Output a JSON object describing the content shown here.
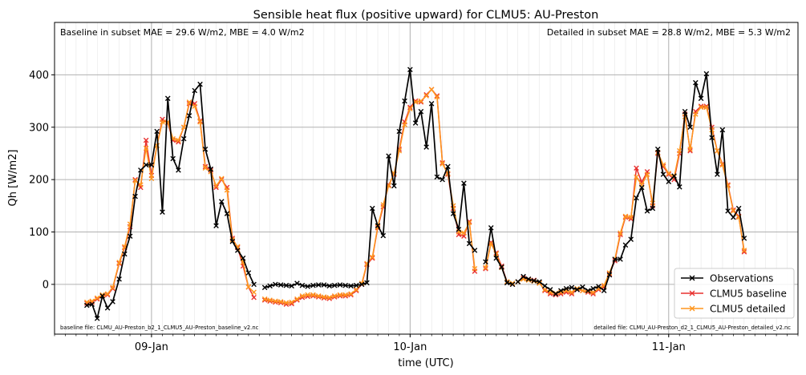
{
  "chart_data": {
    "type": "line",
    "title": "Sensible heat flux (positive upward) for CLMU5: AU-Preston",
    "xlabel": "time (UTC)",
    "ylabel": "Qh [W/m2]",
    "xlim": [
      -0.375,
      2.5
    ],
    "ylim": [
      -95,
      500
    ],
    "xticks": [
      {
        "v": 0,
        "label": "09-Jan"
      },
      {
        "v": 1,
        "label": "10-Jan"
      },
      {
        "v": 2,
        "label": "11-Jan"
      }
    ],
    "yticks": [
      0,
      100,
      200,
      300,
      400
    ],
    "grid": true,
    "legend_position": "lower right",
    "annotations": {
      "baseline_metrics": "Baseline in subset MAE = 29.6 W/m2, MBE = 4.0 W/m2",
      "detailed_metrics": "Detailed in subset MAE = 28.8 W/m2, MBE = 5.3 W/m2",
      "baseline_file": "baseline file: CLMU_AU-Preston_b2_1_CLMU5_AU-Preston_baseline_v2.nc",
      "detailed_file": "detailed file: CLMU_AU-Preston_d2_1_CLMU5_AU-Preston_detailed_v2.nc"
    },
    "series": [
      {
        "name": "Observations",
        "color": "#000000",
        "x_days_from_09Jan": [
          -0.25,
          -0.23,
          -0.21,
          -0.19,
          -0.17,
          -0.15,
          -0.125,
          -0.104,
          -0.083,
          -0.063,
          -0.042,
          -0.021,
          0,
          0.021,
          0.042,
          0.063,
          0.083,
          0.104,
          0.125,
          0.146,
          0.167,
          0.188,
          0.208,
          0.229,
          0.25,
          0.271,
          0.292,
          0.313,
          0.333,
          0.354,
          0.375,
          0.396,
          null,
          0.438,
          0.458,
          0.479,
          0.5,
          0.521,
          0.542,
          0.563,
          0.583,
          0.604,
          0.625,
          0.646,
          0.667,
          0.688,
          0.708,
          0.729,
          0.75,
          0.771,
          0.792,
          0.813,
          0.833,
          0.854,
          0.875,
          0.896,
          0.917,
          0.938,
          0.958,
          0.979,
          1.0,
          1.021,
          1.042,
          1.063,
          1.083,
          1.104,
          1.125,
          1.146,
          1.167,
          1.188,
          1.208,
          1.229,
          1.25,
          1.271,
          1.292,
          1.313,
          1.333,
          1.354,
          1.375,
          1.396,
          null,
          1.417,
          1.438,
          1.458,
          1.479,
          1.5,
          1.521,
          1.542,
          1.563,
          1.583,
          1.604,
          1.625,
          1.646,
          1.667,
          1.688,
          1.708,
          1.729,
          1.75,
          1.771,
          1.792,
          1.813,
          1.833,
          1.854,
          1.875,
          1.896,
          1.917,
          1.938,
          1.958,
          1.979,
          2.0,
          2.021,
          2.042,
          2.063,
          2.083,
          2.104,
          2.125,
          2.146,
          2.167,
          2.188,
          2.208,
          2.229,
          2.25,
          2.271,
          2.292,
          2.313,
          2.333,
          2.354,
          2.375
        ],
        "values": [
          -40,
          -38,
          -65,
          -22,
          -45,
          -33,
          10,
          58,
          92,
          168,
          218,
          228,
          228,
          292,
          138,
          355,
          240,
          218,
          278,
          322,
          370,
          382,
          258,
          220,
          112,
          158,
          135,
          82,
          65,
          50,
          22,
          0,
          null,
          -6,
          -3,
          0,
          -1,
          -2,
          -3,
          2,
          -2,
          -4,
          -2,
          -1,
          -1,
          -3,
          -2,
          -1,
          -2,
          -3,
          -2,
          0,
          3,
          145,
          112,
          93,
          245,
          188,
          292,
          350,
          410,
          308,
          330,
          262,
          345,
          205,
          200,
          225,
          135,
          105,
          193,
          78,
          65,
          null,
          43,
          108,
          50,
          33,
          3,
          0,
          2,
          5,
          15,
          10,
          7,
          5,
          -3,
          -10,
          -18,
          -12,
          -8,
          -6,
          -10,
          -5,
          -12,
          -8,
          -4,
          -12,
          18,
          48,
          48,
          75,
          86,
          165,
          185,
          140,
          145,
          258,
          210,
          196,
          207,
          186,
          330,
          300,
          385,
          355,
          402,
          280,
          210,
          295,
          140,
          128,
          145,
          88
        ]
      },
      {
        "name": "CLMU5 baseline",
        "color": "#e8312f",
        "x_days_from_09Jan": [
          -0.25,
          -0.23,
          -0.21,
          -0.19,
          -0.17,
          -0.15,
          -0.125,
          -0.104,
          -0.083,
          -0.063,
          -0.042,
          -0.021,
          0,
          0.021,
          0.042,
          0.063,
          0.083,
          0.104,
          0.125,
          0.146,
          0.167,
          0.188,
          0.208,
          0.229,
          0.25,
          0.271,
          0.292,
          0.313,
          0.333,
          0.354,
          0.375,
          0.396,
          null,
          0.438,
          0.458,
          0.479,
          0.5,
          0.521,
          0.542,
          0.563,
          0.583,
          0.604,
          0.625,
          0.646,
          0.667,
          0.688,
          0.708,
          0.729,
          0.75,
          0.771,
          0.792,
          0.813,
          0.833,
          0.854,
          0.875,
          0.896,
          0.917,
          0.938,
          0.958,
          0.979,
          1.0,
          1.021,
          1.042,
          1.063,
          1.083,
          1.104,
          1.125,
          1.146,
          1.167,
          1.188,
          1.208,
          1.229,
          1.25,
          1.271,
          1.292,
          1.313,
          1.333,
          1.354,
          1.375,
          1.396,
          null,
          1.417,
          1.438,
          1.458,
          1.479,
          1.5,
          1.521,
          1.542,
          1.563,
          1.583,
          1.604,
          1.625,
          1.646,
          1.667,
          1.688,
          1.708,
          1.729,
          1.75,
          1.771,
          1.792,
          1.813,
          1.833,
          1.854,
          1.875,
          1.896,
          1.917,
          1.938,
          1.958,
          1.979,
          2.0,
          2.021,
          2.042,
          2.063,
          2.083,
          2.104,
          2.125,
          2.146,
          2.167,
          2.188,
          2.208,
          2.229,
          2.25,
          2.271,
          2.292,
          2.313,
          2.333,
          2.354,
          2.375
        ],
        "values": [
          -36,
          -34,
          -28,
          -22,
          -20,
          -8,
          40,
          70,
          110,
          200,
          185,
          275,
          208,
          265,
          315,
          308,
          275,
          272,
          300,
          345,
          345,
          312,
          225,
          218,
          185,
          200,
          185,
          88,
          70,
          35,
          -5,
          -25,
          null,
          -30,
          -32,
          -34,
          -35,
          -38,
          -37,
          -30,
          -25,
          -23,
          -22,
          -24,
          -26,
          -27,
          -24,
          -22,
          -22,
          -20,
          -12,
          0,
          38,
          50,
          108,
          148,
          190,
          210,
          258,
          310,
          338,
          350,
          348,
          362,
          372,
          360,
          232,
          210,
          145,
          95,
          92,
          120,
          25,
          null,
          30,
          80,
          60,
          35,
          5,
          0,
          3,
          5,
          12,
          10,
          8,
          3,
          -12,
          -18,
          -20,
          -18,
          -15,
          -18,
          -10,
          -12,
          -15,
          -18,
          -10,
          -5,
          20,
          45,
          95,
          128,
          125,
          222,
          195,
          215,
          150,
          250,
          225,
          210,
          200,
          250,
          325,
          255,
          330,
          340,
          340,
          300,
          255,
          230,
          190,
          142,
          130,
          62
        ]
      },
      {
        "name": "CLMU5 detailed",
        "color": "#ff961e",
        "x_days_from_09Jan": [
          -0.25,
          -0.23,
          -0.21,
          -0.19,
          -0.17,
          -0.15,
          -0.125,
          -0.104,
          -0.083,
          -0.063,
          -0.042,
          -0.021,
          0,
          0.021,
          0.042,
          0.063,
          0.083,
          0.104,
          0.125,
          0.146,
          0.167,
          0.188,
          0.208,
          0.229,
          0.25,
          0.271,
          0.292,
          0.313,
          0.333,
          0.354,
          0.375,
          0.396,
          null,
          0.438,
          0.458,
          0.479,
          0.5,
          0.521,
          0.542,
          0.563,
          0.583,
          0.604,
          0.625,
          0.646,
          0.667,
          0.688,
          0.708,
          0.729,
          0.75,
          0.771,
          0.792,
          0.813,
          0.833,
          0.854,
          0.875,
          0.896,
          0.917,
          0.938,
          0.958,
          0.979,
          1.0,
          1.021,
          1.042,
          1.063,
          1.083,
          1.104,
          1.125,
          1.146,
          1.167,
          1.188,
          1.208,
          1.229,
          1.25,
          1.271,
          1.292,
          1.313,
          1.333,
          1.354,
          1.375,
          1.396,
          null,
          1.417,
          1.438,
          1.458,
          1.479,
          1.5,
          1.521,
          1.542,
          1.563,
          1.583,
          1.604,
          1.625,
          1.646,
          1.667,
          1.688,
          1.708,
          1.729,
          1.75,
          1.771,
          1.792,
          1.813,
          1.833,
          1.854,
          1.875,
          1.896,
          1.917,
          1.938,
          1.958,
          1.979,
          2.0,
          2.021,
          2.042,
          2.063,
          2.083,
          2.104,
          2.125,
          2.146,
          2.167,
          2.188,
          2.208,
          2.229,
          2.25,
          2.271,
          2.292,
          2.313,
          2.333,
          2.354,
          2.375
        ],
        "values": [
          -34,
          -32,
          -26,
          -20,
          -18,
          -6,
          42,
          72,
          115,
          198,
          190,
          260,
          202,
          265,
          310,
          310,
          278,
          275,
          300,
          348,
          340,
          310,
          222,
          215,
          188,
          202,
          180,
          85,
          72,
          42,
          -5,
          -15,
          null,
          -28,
          -30,
          -32,
          -33,
          -35,
          -34,
          -28,
          -22,
          -20,
          -20,
          -22,
          -24,
          -25,
          -22,
          -20,
          -20,
          -18,
          -10,
          2,
          40,
          52,
          110,
          152,
          188,
          212,
          255,
          305,
          335,
          348,
          350,
          360,
          372,
          358,
          230,
          212,
          150,
          100,
          98,
          118,
          30,
          null,
          32,
          78,
          58,
          32,
          5,
          2,
          5,
          5,
          10,
          8,
          6,
          2,
          -10,
          -15,
          -17,
          -15,
          -12,
          -15,
          -8,
          -12,
          -13,
          -15,
          -8,
          -2,
          22,
          48,
          98,
          130,
          128,
          205,
          190,
          210,
          155,
          252,
          228,
          212,
          205,
          255,
          320,
          258,
          325,
          338,
          338,
          295,
          255,
          228,
          188,
          140,
          128,
          65
        ]
      }
    ]
  }
}
